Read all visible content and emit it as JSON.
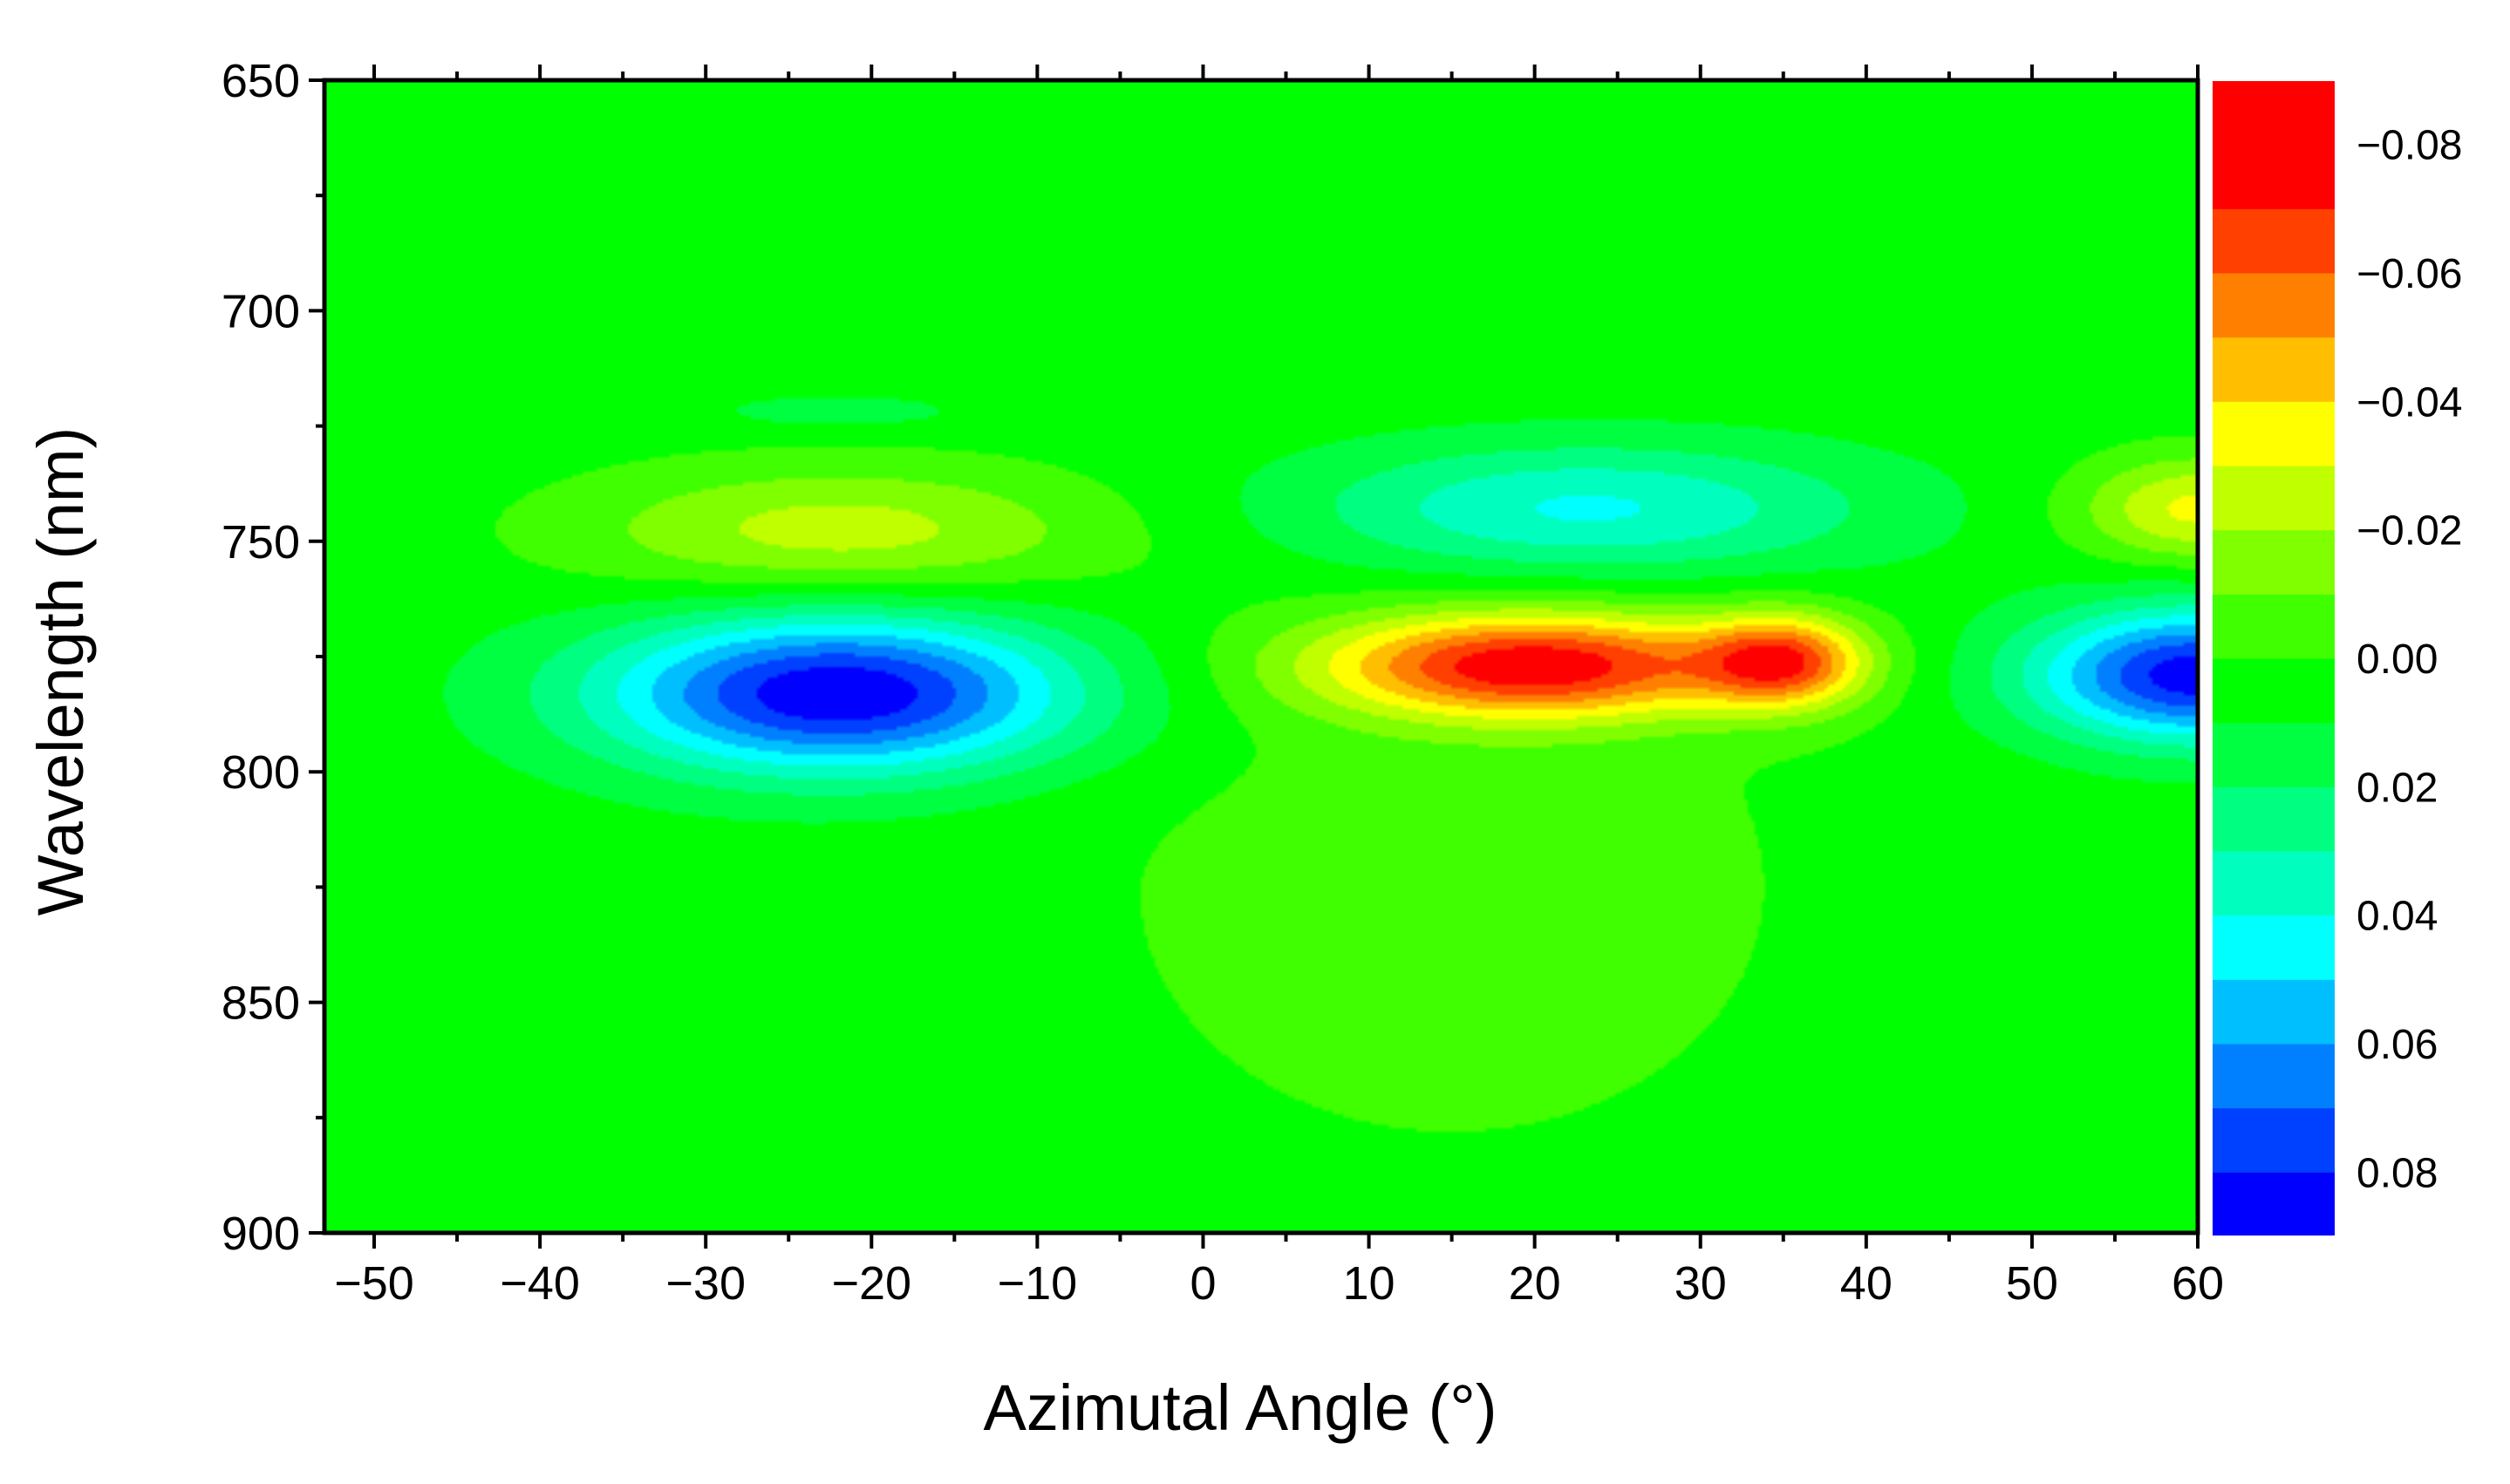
{
  "chart_data": {
    "type": "heatmap",
    "subtype": "filled-contour",
    "xlabel": "Azimutal Angle (°)",
    "ylabel": "Wavelength (nm)",
    "xlim": [
      -53,
      60
    ],
    "ylim": [
      650,
      900
    ],
    "y_inverted": true,
    "grid": false,
    "x_ticks": [
      -50,
      -40,
      -30,
      -20,
      -10,
      0,
      10,
      20,
      30,
      40,
      50,
      60
    ],
    "x_tick_labels": [
      "−50",
      "−40",
      "−30",
      "−20",
      "−10",
      "0",
      "10",
      "20",
      "30",
      "40",
      "50",
      "60"
    ],
    "y_ticks": [
      650,
      700,
      750,
      800,
      850,
      900
    ],
    "y_tick_labels": [
      "650",
      "700",
      "750",
      "800",
      "850",
      "900"
    ],
    "background_level": 0.005,
    "features": [
      {
        "x": -22,
        "y": 783,
        "value": 0.085,
        "sx": 10,
        "sy": 12
      },
      {
        "x": -22,
        "y": 748,
        "value": -0.03,
        "sx": 11,
        "sy": 10
      },
      {
        "x": 20,
        "y": 777,
        "value": -0.08,
        "sx": 9,
        "sy": 8
      },
      {
        "x": 35,
        "y": 776,
        "value": -0.062,
        "sx": 3.5,
        "sy": 7
      },
      {
        "x": 23,
        "y": 743,
        "value": 0.038,
        "sx": 12,
        "sy": 10
      },
      {
        "x": 60,
        "y": 779,
        "value": 0.082,
        "sx": 7,
        "sy": 10
      },
      {
        "x": 60,
        "y": 743,
        "value": -0.038,
        "sx": 5,
        "sy": 8
      },
      {
        "x": 15,
        "y": 825,
        "value": -0.01,
        "sx": 16,
        "sy": 45
      },
      {
        "x": -22,
        "y": 722,
        "value": 0.01,
        "sx": 6,
        "sy": 3
      }
    ],
    "colorbar": {
      "tick_values": [
        -0.08,
        -0.06,
        -0.04,
        -0.02,
        0.0,
        0.02,
        0.04,
        0.06,
        0.08
      ],
      "tick_labels": [
        "−0.08",
        "−0.06",
        "−0.04",
        "−0.02",
        "0.00",
        "0.02",
        "0.04",
        "0.06",
        "0.08"
      ],
      "orientation": "vertical",
      "placement": "right",
      "levels": [
        {
          "from": 0.08,
          "to": 0.09,
          "color": "#0000ff"
        },
        {
          "from": 0.07,
          "to": 0.08,
          "color": "#0040ff"
        },
        {
          "from": 0.06,
          "to": 0.07,
          "color": "#0080ff"
        },
        {
          "from": 0.05,
          "to": 0.06,
          "color": "#00bfff"
        },
        {
          "from": 0.04,
          "to": 0.05,
          "color": "#00ffff"
        },
        {
          "from": 0.03,
          "to": 0.04,
          "color": "#00ffbf"
        },
        {
          "from": 0.02,
          "to": 0.03,
          "color": "#00ff80"
        },
        {
          "from": 0.01,
          "to": 0.02,
          "color": "#00ff40"
        },
        {
          "from": 0.0,
          "to": 0.01,
          "color": "#00ff00"
        },
        {
          "from": -0.01,
          "to": 0.0,
          "color": "#40ff00"
        },
        {
          "from": -0.02,
          "to": -0.01,
          "color": "#80ff00"
        },
        {
          "from": -0.03,
          "to": -0.02,
          "color": "#bfff00"
        },
        {
          "from": -0.04,
          "to": -0.03,
          "color": "#ffff00"
        },
        {
          "from": -0.05,
          "to": -0.04,
          "color": "#ffbf00"
        },
        {
          "from": -0.06,
          "to": -0.05,
          "color": "#ff8000"
        },
        {
          "from": -0.07,
          "to": -0.06,
          "color": "#ff4000"
        },
        {
          "from": -0.09,
          "to": -0.07,
          "color": "#ff0000"
        }
      ]
    }
  }
}
